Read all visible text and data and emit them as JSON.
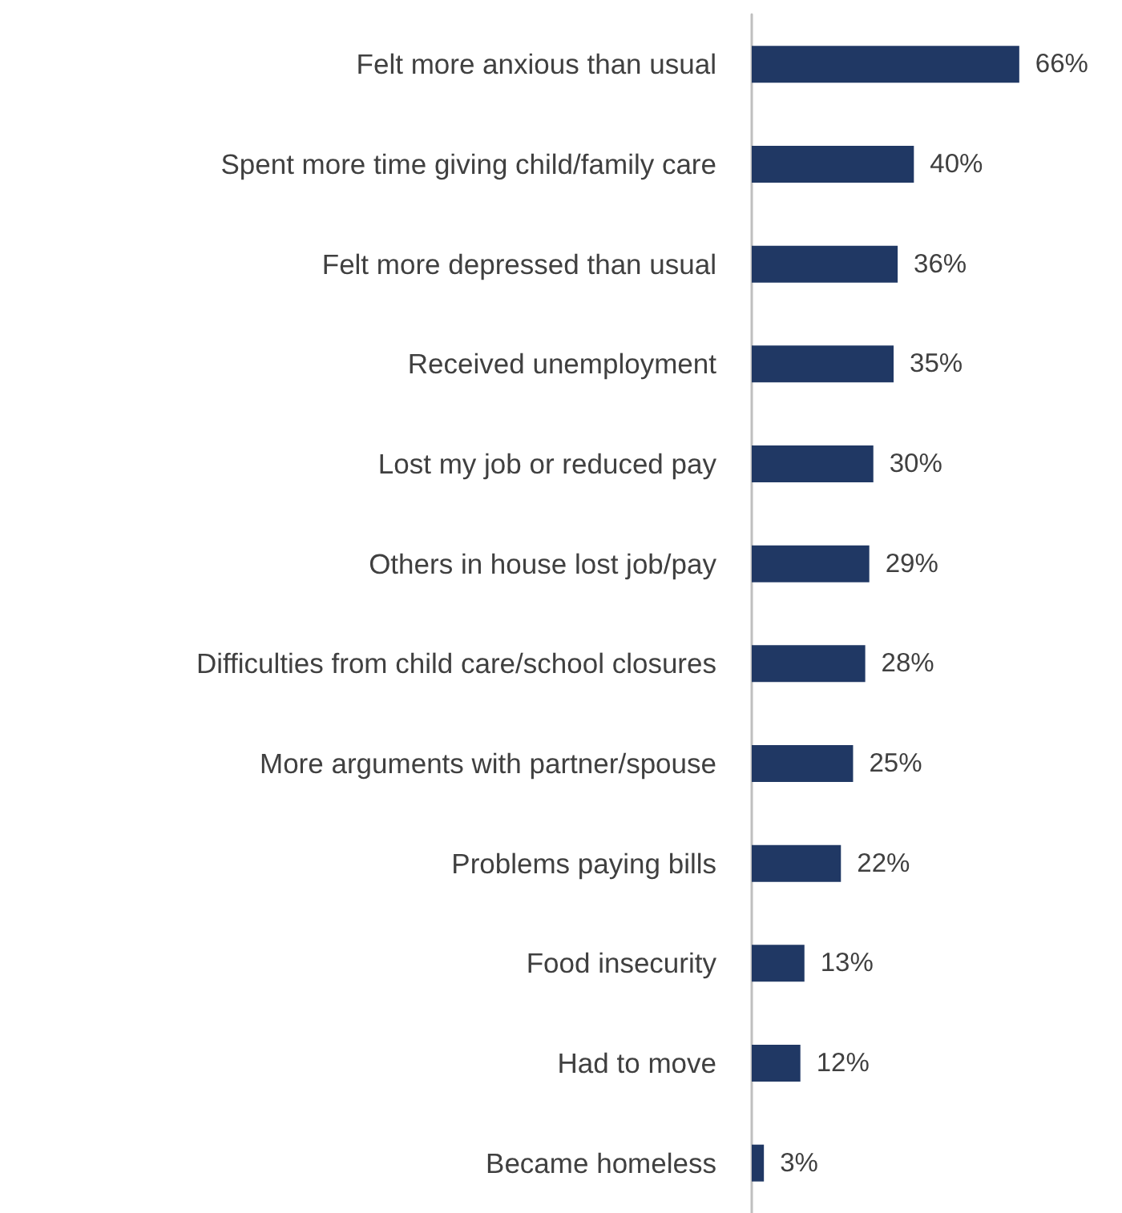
{
  "chart_data": {
    "type": "bar",
    "orientation": "horizontal",
    "categories": [
      "Felt more anxious than usual",
      "Spent more time giving child/family care",
      "Felt more depressed than usual",
      "Received unemployment",
      "Lost my job or reduced pay",
      "Others in house lost job/pay",
      "Difficulties from child care/school closures",
      "More arguments with partner/spouse",
      "Problems paying bills",
      "Food insecurity",
      "Had to move",
      "Became homeless"
    ],
    "values": [
      66,
      40,
      36,
      35,
      30,
      29,
      28,
      25,
      22,
      13,
      12,
      3
    ],
    "value_labels": [
      "66%",
      "40%",
      "36%",
      "35%",
      "30%",
      "29%",
      "28%",
      "25%",
      "22%",
      "13%",
      "12%",
      "3%"
    ],
    "color": "#203864"
  }
}
